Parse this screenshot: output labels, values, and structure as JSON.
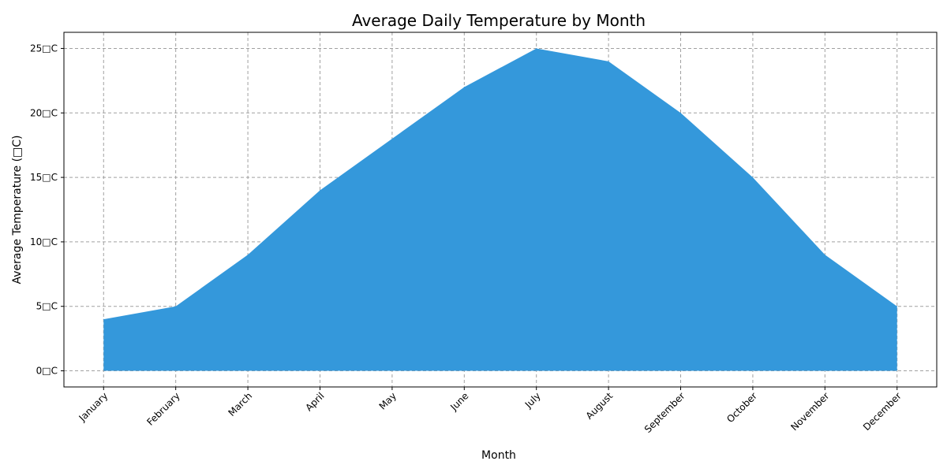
{
  "chart_data": {
    "type": "area",
    "title": "Average Daily Temperature by Month",
    "xlabel": "Month",
    "ylabel": "Average Temperature (□C)",
    "categories": [
      "January",
      "February",
      "March",
      "April",
      "May",
      "June",
      "July",
      "August",
      "September",
      "October",
      "November",
      "December"
    ],
    "values": [
      4,
      5,
      9,
      14,
      18,
      22,
      25,
      24,
      20,
      15,
      9,
      5
    ],
    "ylim": [
      -1.25,
      26.25
    ],
    "yticks": [
      0,
      5,
      10,
      15,
      20,
      25
    ],
    "ytick_labels": [
      "0□C",
      "5□C",
      "10□C",
      "15□C",
      "20□C",
      "25□C"
    ],
    "fill_color": "#3498db",
    "grid": true,
    "grid_color": "#a0a0a0",
    "xtick_rotation": 45
  }
}
